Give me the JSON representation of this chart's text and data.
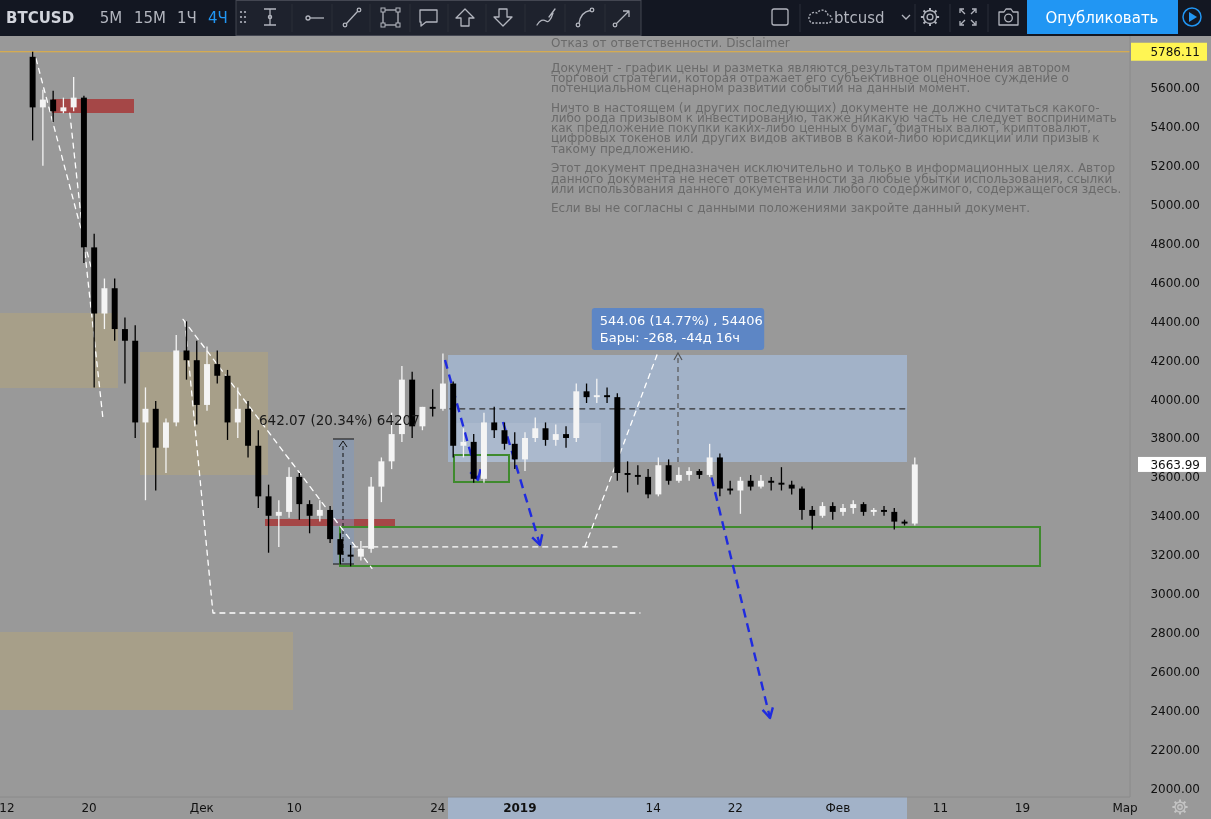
{
  "chart_data": {
    "type": "candlestick",
    "title": "BTCUSD",
    "x": [
      "2018-11-14T12:00",
      "2018-11-15T12:00",
      "2018-11-16T12:00",
      "2018-11-17T12:00",
      "2018-11-18T12:00",
      "2018-11-19T12:00",
      "2018-11-20T12:00",
      "2018-11-21T12:00",
      "2018-11-22T12:00",
      "2018-11-23T12:00",
      "2018-11-24T12:00",
      "2018-11-25T12:00",
      "2018-11-26T12:00",
      "2018-11-27T12:00",
      "2018-11-28T12:00",
      "2018-11-29T12:00",
      "2018-11-30T12:00",
      "2018-12-01T12:00",
      "2018-12-02T12:00",
      "2018-12-03T12:00",
      "2018-12-04T12:00",
      "2018-12-05T12:00",
      "2018-12-06T12:00",
      "2018-12-07T12:00",
      "2018-12-08T12:00",
      "2018-12-09T12:00",
      "2018-12-10T12:00",
      "2018-12-11T12:00",
      "2018-12-12T12:00",
      "2018-12-13T12:00",
      "2018-12-14T12:00",
      "2018-12-15T12:00",
      "2018-12-16T12:00",
      "2018-12-17T12:00",
      "2018-12-18T12:00",
      "2018-12-19T12:00",
      "2018-12-20T12:00",
      "2018-12-21T12:00",
      "2018-12-22T12:00",
      "2018-12-23T12:00",
      "2018-12-24T12:00",
      "2018-12-25T12:00",
      "2018-12-26T12:00",
      "2018-12-27T12:00",
      "2018-12-28T12:00",
      "2018-12-29T12:00",
      "2018-12-30T12:00",
      "2018-12-31T12:00",
      "2019-01-01T12:00",
      "2019-01-02T12:00",
      "2019-01-03T12:00",
      "2019-01-04T12:00",
      "2019-01-05T12:00",
      "2019-01-06T12:00",
      "2019-01-07T12:00",
      "2019-01-08T12:00",
      "2019-01-09T12:00",
      "2019-01-10T12:00",
      "2019-01-11T12:00",
      "2019-01-12T12:00",
      "2019-01-13T12:00",
      "2019-01-14T12:00",
      "2019-01-15T12:00",
      "2019-01-16T12:00",
      "2019-01-17T12:00",
      "2019-01-18T12:00",
      "2019-01-19T12:00",
      "2019-01-20T12:00",
      "2019-01-21T12:00",
      "2019-01-22T12:00",
      "2019-01-23T12:00",
      "2019-01-24T12:00",
      "2019-01-25T12:00",
      "2019-01-26T12:00",
      "2019-01-27T12:00",
      "2019-01-28T12:00",
      "2019-01-29T12:00",
      "2019-01-30T12:00",
      "2019-01-31T12:00",
      "2019-02-01T12:00",
      "2019-02-02T12:00",
      "2019-02-03T12:00",
      "2019-02-04T12:00",
      "2019-02-05T12:00",
      "2019-02-06T12:00",
      "2019-02-07T12:00",
      "2019-02-08T12:00"
    ],
    "ohlc": [
      [
        5760,
        5786.11,
        5330,
        5500
      ],
      [
        5500,
        5590,
        5200,
        5540
      ],
      [
        5540,
        5585,
        5425,
        5480
      ],
      [
        5480,
        5550,
        5470,
        5500
      ],
      [
        5500,
        5656,
        5480,
        5550
      ],
      [
        5550,
        5560,
        4700,
        4780
      ],
      [
        4780,
        4850,
        4060,
        4440
      ],
      [
        4440,
        4620,
        4360,
        4570
      ],
      [
        4570,
        4620,
        4300,
        4360
      ],
      [
        4360,
        4420,
        4080,
        4300
      ],
      [
        4300,
        4380,
        3800,
        3880
      ],
      [
        3880,
        4060,
        3480,
        3950
      ],
      [
        3950,
        3990,
        3530,
        3750
      ],
      [
        3750,
        3900,
        3620,
        3880
      ],
      [
        3880,
        4330,
        3860,
        4250
      ],
      [
        4250,
        4400,
        4100,
        4200
      ],
      [
        4200,
        4300,
        3870,
        3970
      ],
      [
        3970,
        4270,
        3940,
        4180
      ],
      [
        4180,
        4250,
        4080,
        4120
      ],
      [
        4120,
        4150,
        3790,
        3880
      ],
      [
        3880,
        4060,
        3800,
        3950
      ],
      [
        3950,
        3990,
        3700,
        3760
      ],
      [
        3760,
        3840,
        3440,
        3500
      ],
      [
        3500,
        3560,
        3210,
        3400
      ],
      [
        3400,
        3480,
        3240,
        3420
      ],
      [
        3420,
        3650,
        3390,
        3600
      ],
      [
        3600,
        3620,
        3380,
        3460
      ],
      [
        3460,
        3480,
        3310,
        3400
      ],
      [
        3400,
        3480,
        3370,
        3430
      ],
      [
        3430,
        3450,
        3260,
        3280
      ],
      [
        3280,
        3310,
        3150,
        3200
      ],
      [
        3200,
        3250,
        3140,
        3190
      ],
      [
        3190,
        3270,
        3170,
        3230
      ],
      [
        3230,
        3600,
        3210,
        3550
      ],
      [
        3550,
        3700,
        3470,
        3680
      ],
      [
        3680,
        3930,
        3640,
        3820
      ],
      [
        3820,
        4170,
        3780,
        4100
      ],
      [
        4100,
        4140,
        3800,
        3860
      ],
      [
        3860,
        3960,
        3840,
        3960
      ],
      [
        3960,
        4050,
        3910,
        3950
      ],
      [
        3950,
        4234,
        3940,
        4080
      ],
      [
        4080,
        4090,
        3700,
        3760
      ],
      [
        3760,
        3850,
        3700,
        3780
      ],
      [
        3780,
        3820,
        3570,
        3590
      ],
      [
        3590,
        3930,
        3570,
        3880
      ],
      [
        3880,
        3960,
        3800,
        3840
      ],
      [
        3840,
        3880,
        3740,
        3770
      ],
      [
        3770,
        3830,
        3640,
        3690
      ],
      [
        3690,
        3830,
        3630,
        3800
      ],
      [
        3800,
        3905,
        3780,
        3850
      ],
      [
        3850,
        3880,
        3760,
        3790
      ],
      [
        3790,
        3870,
        3760,
        3820
      ],
      [
        3820,
        3860,
        3750,
        3800
      ],
      [
        3800,
        4080,
        3780,
        4040
      ],
      [
        4040,
        4080,
        3980,
        4010
      ],
      [
        4010,
        4105,
        3980,
        4020
      ],
      [
        4020,
        4060,
        3980,
        4010
      ],
      [
        4010,
        4030,
        3580,
        3620
      ],
      [
        3620,
        3680,
        3520,
        3610
      ],
      [
        3610,
        3660,
        3560,
        3600
      ],
      [
        3600,
        3640,
        3490,
        3510
      ],
      [
        3510,
        3700,
        3500,
        3660
      ],
      [
        3660,
        3690,
        3560,
        3580
      ],
      [
        3580,
        3650,
        3570,
        3610
      ],
      [
        3610,
        3650,
        3580,
        3630
      ],
      [
        3630,
        3640,
        3590,
        3610
      ],
      [
        3610,
        3770,
        3600,
        3700
      ],
      [
        3700,
        3720,
        3500,
        3540
      ],
      [
        3540,
        3580,
        3510,
        3530
      ],
      [
        3530,
        3600,
        3410,
        3580
      ],
      [
        3580,
        3610,
        3530,
        3550
      ],
      [
        3550,
        3610,
        3540,
        3580
      ],
      [
        3580,
        3600,
        3530,
        3570
      ],
      [
        3570,
        3650,
        3530,
        3560
      ],
      [
        3560,
        3580,
        3510,
        3540
      ],
      [
        3540,
        3550,
        3380,
        3430
      ],
      [
        3430,
        3450,
        3330,
        3400
      ],
      [
        3400,
        3470,
        3390,
        3450
      ],
      [
        3450,
        3470,
        3380,
        3420
      ],
      [
        3420,
        3460,
        3400,
        3440
      ],
      [
        3440,
        3480,
        3410,
        3460
      ],
      [
        3460,
        3470,
        3400,
        3420
      ],
      [
        3420,
        3440,
        3400,
        3430
      ],
      [
        3430,
        3450,
        3400,
        3420
      ],
      [
        3420,
        3440,
        3330,
        3370
      ],
      [
        3370,
        3380,
        3350,
        3360
      ],
      [
        3360,
        3700,
        3350,
        3663.99
      ]
    ],
    "series": [
      {
        "type": "line",
        "color": "#ffffff",
        "x": [
          "2018-11-14T20:00",
          "2018-11-20T07:00"
        ],
        "values": [
          5750,
          4660
        ]
      },
      {
        "type": "line",
        "color": "#ffffff",
        "x": [
          "2018-11-18T03:00",
          "2018-11-21T09:00"
        ],
        "values": [
          5470,
          3890
        ]
      },
      {
        "type": "line",
        "color": "#ffffff",
        "x": [
          "2018-11-29T04:00",
          "2018-12-17T14:00"
        ],
        "values": [
          4410,
          3130
        ]
      },
      {
        "type": "line",
        "color": "#ffffff",
        "x": [
          "2018-11-29T08:00",
          "2018-12-02T02:00",
          "2019-01-12T17:00"
        ],
        "values": [
          4400,
          2900,
          2900
        ]
      },
      {
        "type": "line",
        "color": "#ffffff",
        "x": [
          "2018-12-15T17:00",
          "2019-01-10T11:00"
        ],
        "values": [
          3240,
          3240
        ]
      },
      {
        "type": "line",
        "color": "#ffffff",
        "x": [
          "2019-01-07T08:00",
          "2019-01-14T11:00"
        ],
        "values": [
          3240,
          4240
        ]
      },
      {
        "type": "line",
        "color": "#333333",
        "x": [
          "2018-12-25T04:00",
          "2019-02-07T18:00"
        ],
        "values": [
          3950,
          3950
        ]
      }
    ],
    "line_style": "dashed",
    "xlim": [
      "2018-11-11T07:40",
      "2019-03-01T11:30"
    ],
    "xticks": [
      {
        "value": "2018-11-12",
        "label": "12"
      },
      {
        "value": "2018-11-20",
        "label": "20"
      },
      {
        "value": "2018-12-01",
        "label": "Дек"
      },
      {
        "value": "2018-12-10",
        "label": "10"
      },
      {
        "value": "2018-12-24",
        "label": "24"
      },
      {
        "value": "2019-01-01",
        "label": "2019"
      },
      {
        "value": "2019-01-14",
        "label": "14"
      },
      {
        "value": "2019-01-22",
        "label": "22"
      },
      {
        "value": "2019-02-01",
        "label": "Фев"
      },
      {
        "value": "2019-02-11",
        "label": "11"
      },
      {
        "value": "2019-02-19",
        "label": "19"
      },
      {
        "value": "2019-03-01",
        "label": "Мар"
      }
    ],
    "ylim": [
      1954,
      5867
    ],
    "yticks": [
      {
        "value": 2000,
        "label": "2000.00"
      },
      {
        "value": 2200,
        "label": "2200.00"
      },
      {
        "value": 2400,
        "label": "2400.00"
      },
      {
        "value": 2600,
        "label": "2600.00"
      },
      {
        "value": 2800,
        "label": "2800.00"
      },
      {
        "value": 3000,
        "label": "3000.00"
      },
      {
        "value": 3200,
        "label": "3200.00"
      },
      {
        "value": 3400,
        "label": "3400.00"
      },
      {
        "value": 3600,
        "label": "3600.00"
      },
      {
        "value": 3663.99,
        "label": "3663.99"
      },
      {
        "value": 3800,
        "label": "3800.00"
      },
      {
        "value": 4000,
        "label": "4000.00"
      },
      {
        "value": 4200,
        "label": "4200.00"
      },
      {
        "value": 4400,
        "label": "4400.00"
      },
      {
        "value": 4600,
        "label": "4600.00"
      },
      {
        "value": 4800,
        "label": "4800.00"
      },
      {
        "value": 5000,
        "label": "5000.00"
      },
      {
        "value": 5200,
        "label": "5200.00"
      },
      {
        "value": 5400,
        "label": "5400.00"
      },
      {
        "value": 5600,
        "label": "5600.00"
      }
    ],
    "ref_lines": [
      {
        "axis": "y",
        "value": 5786.11,
        "label": "5786.11",
        "color": "#e8b23c"
      }
    ],
    "annotations": [
      "5M",
      "15M",
      "1Ч",
      "4Ч",
      "btcusd",
      "Опубликовать",
      "Отказ от ответственности. Disclaimer",
      "Документ - график цены и разметка являются результатом применения автором\nторговой стратегии, которая отражает его субъективное оценочное суждение о\nпотенциальном сценарном развитии событий на данный момент.",
      "Ничто в настоящем (и других последующих) документе не должно считаться какого-\nлибо рода призывом к инвестированию, также никакую часть не следует воспринимать\nкак предложение покупки каких-либо ценных бумаг, фиатных валют, криптовалют,\nцифровых токенов или других видов активов в какой-либо юрисдикции или призыв к\nтакому предложению.",
      "Этот документ предназначен исключительно и только в информационных целях. Автор\nданного документа не несет ответственности за любые убытки использования, ссылки\nили использования данного документа или любого содержимого, содержащегося здесь.",
      "Если вы не согласны с данными положениями закройте данный документ.",
      {
        "text": "642.07 (20.34%) 64207",
        "x": "2018-12-14T12:00",
        "y": 3150
      },
      "544.06 (14.77%) , 54406\nБары: -268, -44д 16ч"
    ]
  }
}
